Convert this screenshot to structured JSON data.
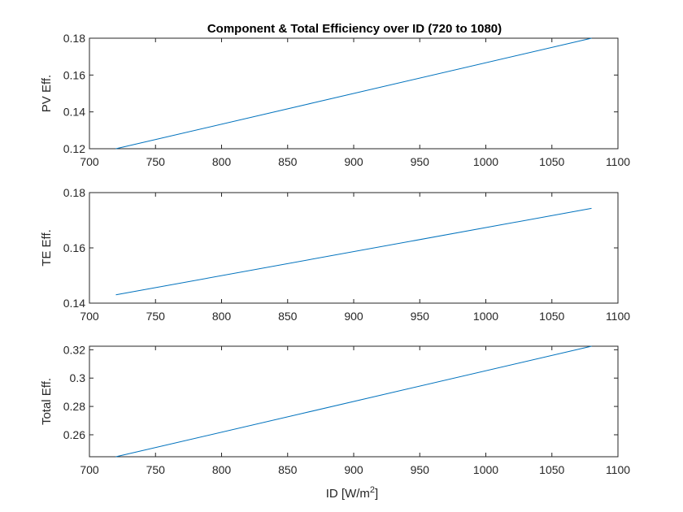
{
  "chart_data": {
    "type": "line",
    "title": "Component & Total Efficiency over ID (720 to 1080)",
    "xlabel": "ID [W/m",
    "xlabel_superscript": "2",
    "xlabel_suffix": "]",
    "xlim": [
      700,
      1100
    ],
    "xticks": [
      700,
      750,
      800,
      850,
      900,
      950,
      1000,
      1050,
      1100
    ],
    "grid": false,
    "line_color": "#0072BD",
    "subplots": [
      {
        "ylabel": "PV Eff.",
        "ylim": [
          0.12,
          0.18
        ],
        "yticks": [
          0.12,
          0.14,
          0.16,
          0.18
        ],
        "ytick_labels": [
          "0.12",
          "0.14",
          "0.16",
          "0.18"
        ],
        "series": [
          {
            "x": [
              720,
              1080
            ],
            "y": [
              0.12,
              0.18
            ]
          }
        ]
      },
      {
        "ylabel": "TE Eff.",
        "ylim": [
          0.14,
          0.18
        ],
        "yticks": [
          0.14,
          0.16,
          0.18
        ],
        "ytick_labels": [
          "0.14",
          "0.16",
          "0.18"
        ],
        "series": [
          {
            "x": [
              720,
              1080
            ],
            "y": [
              0.143,
              0.1743
            ]
          }
        ]
      },
      {
        "ylabel": "Total Eff.",
        "ylim": [
          0.2445,
          0.3225
        ],
        "yticks": [
          0.26,
          0.28,
          0.3,
          0.32
        ],
        "ytick_labels": [
          "0.26",
          "0.28",
          "0.3",
          "0.32"
        ],
        "series": [
          {
            "x": [
              720,
              1080
            ],
            "y": [
              0.2445,
              0.3225
            ]
          }
        ]
      }
    ]
  }
}
